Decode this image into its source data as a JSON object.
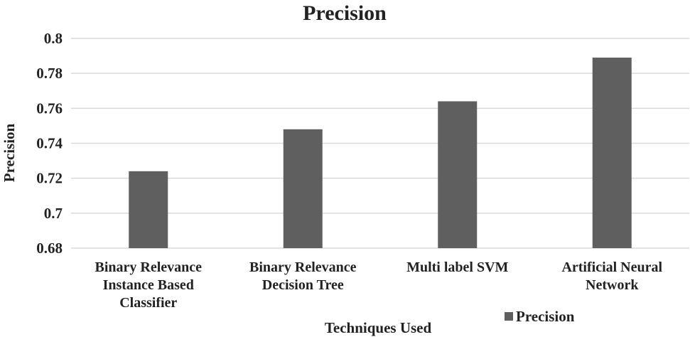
{
  "chart_data": {
    "type": "bar",
    "title": "Precision",
    "xlabel": "Techniques Used",
    "ylabel": "Precision",
    "categories": [
      [
        "Binary Relevance",
        "Instance Based",
        "Classifier"
      ],
      [
        "Binary Relevance",
        "Decision Tree"
      ],
      [
        "Multi label SVM"
      ],
      [
        "Artificial Neural",
        "Network"
      ]
    ],
    "series": [
      {
        "name": "Precision",
        "values": [
          0.724,
          0.748,
          0.764,
          0.789
        ]
      }
    ],
    "ylim": [
      0.68,
      0.8
    ],
    "yticks": [
      "0.68",
      "0.7",
      "0.72",
      "0.74",
      "0.76",
      "0.78",
      "0.8"
    ],
    "grid": true,
    "legend_position": "bottom-right",
    "colors": {
      "bar": "#5f5f5f",
      "grid": "#d9d9d9",
      "text": "#222222"
    }
  }
}
